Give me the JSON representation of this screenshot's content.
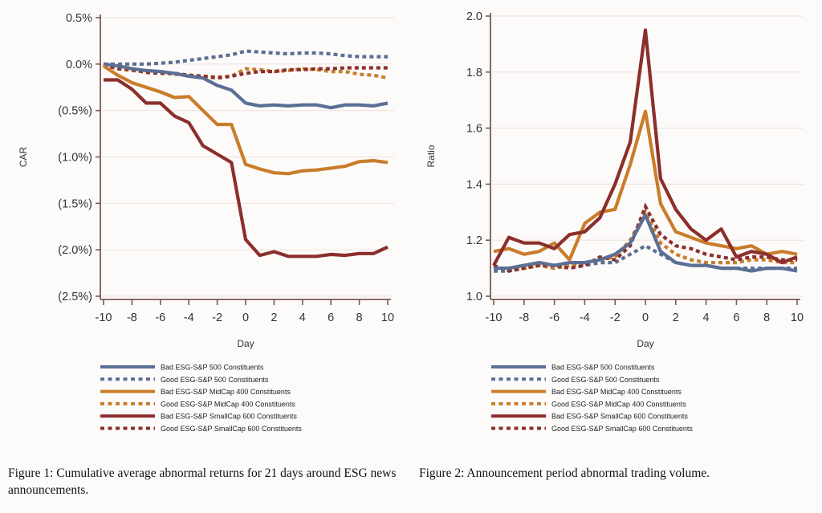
{
  "captions": {
    "left": "Figure 1: Cumulative average abnormal returns for 21 days around ESG news announcements.",
    "right": "Figure 2: Announcement period abnormal trading volume."
  },
  "chart_data": [
    {
      "type": "line",
      "title": "",
      "xlabel": "Day",
      "ylabel": "CAR",
      "x": [
        -10,
        -9,
        -8,
        -7,
        -6,
        -5,
        -4,
        -3,
        -2,
        -1,
        0,
        1,
        2,
        3,
        4,
        5,
        6,
        7,
        8,
        9,
        10
      ],
      "xticks": [
        -10,
        -8,
        -6,
        -4,
        -2,
        0,
        2,
        4,
        6,
        8,
        10
      ],
      "xtick_labels": [
        "-10",
        "-8",
        "-6",
        "-4",
        "-2",
        "0",
        "2",
        "4",
        "6",
        "8",
        "10"
      ],
      "ylim": [
        -2.5,
        0.5
      ],
      "yticks": [
        0.5,
        0.0,
        -0.5,
        -1.0,
        -1.5,
        -2.0,
        -2.5
      ],
      "ytick_labels": [
        "0.5%",
        "0.0%",
        "(0.5%)",
        "(1.0%)",
        "(1.5%)",
        "(2.0%)",
        "(2.5%)"
      ],
      "grid": true,
      "legend_position": "bottom",
      "series": [
        {
          "name": "Bad ESG-S&P 500 Constituents",
          "color": "#5b6f94",
          "style": "solid",
          "values": [
            0.0,
            -0.02,
            -0.05,
            -0.07,
            -0.08,
            -0.1,
            -0.13,
            -0.15,
            -0.23,
            -0.28,
            -0.42,
            -0.45,
            -0.44,
            -0.45,
            -0.44,
            -0.44,
            -0.47,
            -0.44,
            -0.44,
            -0.45,
            -0.42
          ]
        },
        {
          "name": "Good ESG-S&P 500 Constituents",
          "color": "#5b6f94",
          "style": "dotted",
          "values": [
            0.0,
            0.0,
            0.0,
            0.0,
            0.01,
            0.02,
            0.04,
            0.06,
            0.08,
            0.1,
            0.14,
            0.13,
            0.12,
            0.11,
            0.12,
            0.12,
            0.11,
            0.09,
            0.08,
            0.08,
            0.08
          ]
        },
        {
          "name": "Bad ESG-S&P MidCap 400 Constituents",
          "color": "#c97d2a",
          "style": "solid",
          "values": [
            -0.02,
            -0.12,
            -0.2,
            -0.25,
            -0.3,
            -0.36,
            -0.35,
            -0.5,
            -0.65,
            -0.65,
            -1.08,
            -1.13,
            -1.17,
            -1.18,
            -1.15,
            -1.14,
            -1.12,
            -1.1,
            -1.05,
            -1.04,
            -1.06
          ]
        },
        {
          "name": "Good ESG-S&P MidCap 400 Constituents",
          "color": "#c97d2a",
          "style": "dotted",
          "values": [
            0.0,
            -0.05,
            -0.07,
            -0.08,
            -0.09,
            -0.11,
            -0.12,
            -0.13,
            -0.14,
            -0.13,
            -0.05,
            -0.06,
            -0.08,
            -0.07,
            -0.05,
            -0.06,
            -0.08,
            -0.08,
            -0.11,
            -0.12,
            -0.15
          ]
        },
        {
          "name": "Bad ESG-S&P SmallCap 600 Constituents",
          "color": "#8b2f2c",
          "style": "solid",
          "values": [
            -0.17,
            -0.17,
            -0.27,
            -0.42,
            -0.42,
            -0.56,
            -0.63,
            -0.88,
            -0.97,
            -1.06,
            -1.89,
            -2.06,
            -2.02,
            -2.07,
            -2.07,
            -2.07,
            -2.05,
            -2.06,
            -2.04,
            -2.04,
            -1.97
          ]
        },
        {
          "name": "Good ESG-S&P SmallCap 600 Constituents",
          "color": "#8b2f2c",
          "style": "dotted",
          "values": [
            -0.01,
            -0.05,
            -0.06,
            -0.09,
            -0.1,
            -0.1,
            -0.12,
            -0.13,
            -0.15,
            -0.13,
            -0.1,
            -0.08,
            -0.08,
            -0.06,
            -0.06,
            -0.05,
            -0.05,
            -0.04,
            -0.04,
            -0.04,
            -0.04
          ]
        }
      ]
    },
    {
      "type": "line",
      "title": "",
      "xlabel": "Day",
      "ylabel": "Ratio",
      "x": [
        -10,
        -9,
        -8,
        -7,
        -6,
        -5,
        -4,
        -3,
        -2,
        -1,
        0,
        1,
        2,
        3,
        4,
        5,
        6,
        7,
        8,
        9,
        10
      ],
      "xticks": [
        -10,
        -8,
        -6,
        -4,
        -2,
        0,
        2,
        4,
        6,
        8,
        10
      ],
      "xtick_labels": [
        "-10",
        "-8",
        "-6",
        "-4",
        "-2",
        "0",
        "2",
        "4",
        "6",
        "8",
        "10"
      ],
      "ylim": [
        1.0,
        2.0
      ],
      "yticks": [
        2.0,
        1.8,
        1.6,
        1.4,
        1.2,
        1.0
      ],
      "ytick_labels": [
        "2.0",
        "1.8",
        "1.6",
        "1.4",
        "1.2",
        "1.0"
      ],
      "grid": true,
      "legend_position": "bottom",
      "series": [
        {
          "name": "Bad ESG-S&P 500 Constituents",
          "color": "#5b6f94",
          "style": "solid",
          "values": [
            1.1,
            1.1,
            1.11,
            1.12,
            1.11,
            1.12,
            1.12,
            1.13,
            1.15,
            1.19,
            1.29,
            1.16,
            1.12,
            1.11,
            1.11,
            1.1,
            1.1,
            1.09,
            1.1,
            1.1,
            1.09
          ]
        },
        {
          "name": "Good ESG-S&P 500 Constituents",
          "color": "#5b6f94",
          "style": "dotted",
          "values": [
            1.09,
            1.09,
            1.1,
            1.11,
            1.1,
            1.11,
            1.11,
            1.12,
            1.12,
            1.15,
            1.18,
            1.15,
            1.12,
            1.11,
            1.11,
            1.1,
            1.1,
            1.1,
            1.1,
            1.1,
            1.1
          ]
        },
        {
          "name": "Bad ESG-S&P MidCap 400 Constituents",
          "color": "#c97d2a",
          "style": "solid",
          "values": [
            1.16,
            1.17,
            1.15,
            1.16,
            1.19,
            1.13,
            1.26,
            1.3,
            1.31,
            1.47,
            1.66,
            1.33,
            1.23,
            1.21,
            1.19,
            1.18,
            1.17,
            1.18,
            1.15,
            1.16,
            1.15
          ]
        },
        {
          "name": "Good ESG-S&P MidCap 400 Constituents",
          "color": "#c97d2a",
          "style": "dotted",
          "values": [
            1.1,
            1.1,
            1.1,
            1.11,
            1.1,
            1.11,
            1.12,
            1.13,
            1.14,
            1.2,
            1.3,
            1.19,
            1.15,
            1.13,
            1.12,
            1.12,
            1.12,
            1.13,
            1.13,
            1.12,
            1.12
          ]
        },
        {
          "name": "Bad ESG-S&P SmallCap 600 Constituents",
          "color": "#8b2f2c",
          "style": "solid",
          "values": [
            1.11,
            1.21,
            1.19,
            1.19,
            1.17,
            1.22,
            1.23,
            1.28,
            1.4,
            1.55,
            1.95,
            1.42,
            1.31,
            1.24,
            1.2,
            1.24,
            1.14,
            1.16,
            1.15,
            1.12,
            1.14
          ]
        },
        {
          "name": "Good ESG-S&P SmallCap 600 Constituents",
          "color": "#8b2f2c",
          "style": "dotted",
          "values": [
            1.11,
            1.09,
            1.1,
            1.11,
            1.11,
            1.1,
            1.11,
            1.14,
            1.13,
            1.18,
            1.32,
            1.22,
            1.18,
            1.17,
            1.15,
            1.14,
            1.13,
            1.14,
            1.14,
            1.13,
            1.13
          ]
        }
      ]
    }
  ]
}
